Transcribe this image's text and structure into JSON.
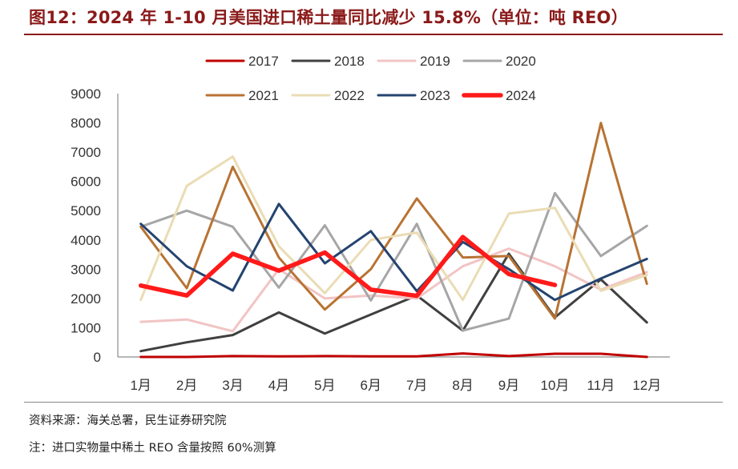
{
  "title": "图12：2024 年 1-10 月美国进口稀土量同比减少 15.8%（单位：吨 REO）",
  "source_note": "资料来源：海关总署，民生证券研究院",
  "footnote": "注：进口实物量中稀土 REO 含量按照 60%测算",
  "chart_data": {
    "type": "line",
    "title": "图12：2024 年 1-10 月美国进口稀土量同比减少 15.8%（单位：吨 REO）",
    "xlabel": "",
    "ylabel": "",
    "ylim": [
      0,
      9000
    ],
    "yticks": [
      0,
      1000,
      2000,
      3000,
      4000,
      5000,
      6000,
      7000,
      8000,
      9000
    ],
    "categories": [
      "1月",
      "2月",
      "3月",
      "4月",
      "5月",
      "6月",
      "7月",
      "8月",
      "9月",
      "10月",
      "11月",
      "12月"
    ],
    "grid": false,
    "legend_position": "top",
    "series": [
      {
        "name": "2017",
        "color": "#c00000",
        "width": 3,
        "values": [
          0,
          0,
          30,
          20,
          30,
          20,
          20,
          120,
          30,
          110,
          110,
          0
        ]
      },
      {
        "name": "2018",
        "color": "#404040",
        "width": 3,
        "values": [
          200,
          500,
          750,
          1520,
          800,
          1450,
          2100,
          900,
          3530,
          1350,
          2650,
          1180
        ]
      },
      {
        "name": "2019",
        "color": "#f2c4c4",
        "width": 3,
        "values": [
          1200,
          1280,
          880,
          3000,
          2000,
          2100,
          2000,
          3100,
          3700,
          3100,
          2300,
          2900
        ]
      },
      {
        "name": "2020",
        "color": "#a6a6a6",
        "width": 3,
        "values": [
          4450,
          5000,
          4450,
          2370,
          4500,
          1930,
          4550,
          900,
          1310,
          5600,
          3450,
          4480
        ]
      },
      {
        "name": "2021",
        "color": "#b87333",
        "width": 3,
        "values": [
          4450,
          2350,
          6500,
          3400,
          1620,
          3000,
          5420,
          3400,
          3450,
          1310,
          8000,
          2500
        ]
      },
      {
        "name": "2022",
        "color": "#eadcb4",
        "width": 3,
        "values": [
          1950,
          5850,
          6850,
          3780,
          2180,
          4000,
          4250,
          1950,
          4900,
          5100,
          2260,
          2800
        ]
      },
      {
        "name": "2023",
        "color": "#24436f",
        "width": 3,
        "values": [
          4550,
          3100,
          2270,
          5230,
          3200,
          4300,
          2250,
          3930,
          3000,
          1950,
          2680,
          3350
        ]
      },
      {
        "name": "2024",
        "color": "#ff1a1a",
        "width": 5.5,
        "values": [
          2440,
          2100,
          3530,
          2950,
          3570,
          2300,
          2090,
          4100,
          2830,
          2460,
          null,
          null
        ]
      }
    ]
  }
}
